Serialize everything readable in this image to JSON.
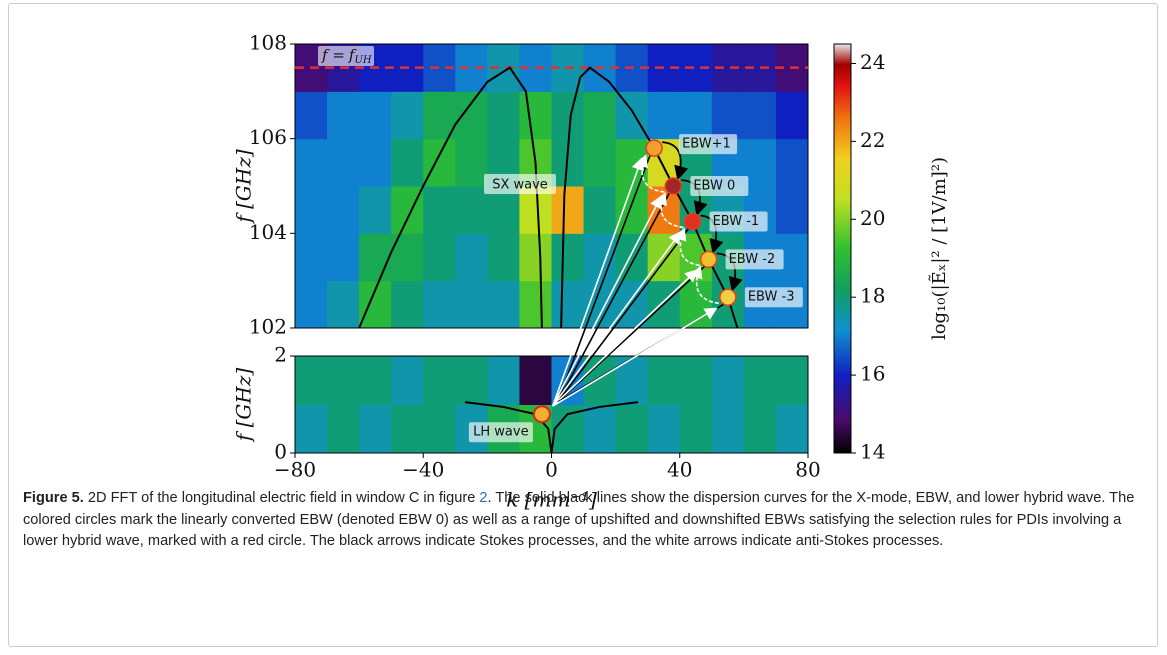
{
  "figure": {
    "xlim": [
      -80,
      80
    ],
    "xticks": [
      {
        "value": -80,
        "label": "−80"
      },
      {
        "value": -40,
        "label": "−40"
      },
      0,
      40,
      80
    ],
    "xlabel": "k [mm⁻¹]",
    "k_edges": [
      -80,
      -70,
      -60,
      -50,
      -40,
      -30,
      -20,
      -10,
      0,
      10,
      20,
      30,
      40,
      50,
      60,
      70,
      80
    ],
    "panels": [
      {
        "ylabel": "f [GHz]",
        "ylim": [
          102,
          108
        ],
        "yticks": [
          102,
          104,
          106,
          108
        ],
        "f_edges": [
          102,
          103,
          104,
          105,
          106,
          107,
          108
        ],
        "values": [
          [
            17,
            17.5,
            19,
            18,
            17.5,
            17.5,
            17.5,
            19.5,
            17.5,
            17.5,
            17.5,
            18,
            19,
            18,
            17,
            17
          ],
          [
            17,
            17,
            18.5,
            18.5,
            18,
            17.5,
            18,
            20,
            18,
            17.5,
            18,
            20,
            19.5,
            18,
            17,
            17
          ],
          [
            17,
            17,
            17.5,
            19,
            18,
            18,
            18,
            20.5,
            22,
            18,
            19,
            22.5,
            18,
            17.5,
            17,
            16.5
          ],
          [
            17,
            17,
            17,
            18,
            19,
            18.5,
            18,
            19.5,
            18,
            18.5,
            19,
            21,
            18,
            17,
            17,
            16.5
          ],
          [
            16.5,
            17,
            17,
            17.5,
            18.5,
            18.5,
            18,
            19,
            18,
            18.5,
            17.5,
            17,
            17,
            16.5,
            16.5,
            16
          ],
          [
            15,
            15.5,
            16,
            16,
            16.5,
            17,
            17.5,
            17,
            17.5,
            17,
            16.5,
            16,
            16,
            15.5,
            15.5,
            15
          ]
        ]
      },
      {
        "ylabel": "f [GHz]",
        "ylim": [
          0,
          2
        ],
        "yticks": [
          0,
          2
        ],
        "f_edges": [
          0,
          1,
          2
        ],
        "values": [
          [
            17.5,
            18,
            17.5,
            18,
            18,
            17.5,
            18.5,
            19,
            18,
            17.5,
            18,
            17.5,
            18,
            17.5,
            18,
            17.5
          ],
          [
            18,
            18,
            18,
            17.5,
            18,
            18,
            17.5,
            14.5,
            17,
            18,
            17.5,
            18,
            18,
            17.5,
            18,
            18
          ]
        ]
      }
    ],
    "colorbar": {
      "label": "log₁₀(|Ẽₓ|² / [1V/m]²)",
      "lim": [
        14,
        24.5
      ],
      "ticks": [
        14,
        16,
        18,
        20,
        22,
        24
      ]
    },
    "fuh": {
      "lhs": "f =",
      "rhs": "f",
      "sub": "UH",
      "value": 107.5
    },
    "curves": [
      {
        "panel": 0,
        "k": [
          -60,
          -50,
          -40,
          -30,
          -20,
          -13,
          -8,
          -5,
          -3.5,
          -3
        ],
        "f": [
          102,
          103.6,
          105,
          106.3,
          107.2,
          107.5,
          107,
          105.5,
          103.5,
          102
        ]
      },
      {
        "panel": 0,
        "k": [
          3,
          4,
          6,
          9,
          12,
          18,
          25,
          32,
          38,
          44,
          49,
          55,
          58
        ],
        "f": [
          102,
          104.8,
          106.5,
          107.3,
          107.5,
          107.2,
          106.6,
          105.8,
          105,
          104.25,
          103.45,
          102.65,
          102
        ]
      },
      {
        "panel": 1,
        "k": [
          -27,
          -15,
          -5,
          -1,
          0
        ],
        "f": [
          1.05,
          0.95,
          0.8,
          0.5,
          0
        ]
      },
      {
        "panel": 1,
        "k": [
          0,
          1,
          5,
          15,
          27
        ],
        "f": [
          0,
          0.5,
          0.8,
          0.95,
          1.05
        ]
      }
    ],
    "sx_label": "SX wave",
    "arrow_origin": {
      "k": 1,
      "f": 1.05
    },
    "modes": [
      {
        "label": "EBW+1",
        "k": 32,
        "f": 105.8,
        "color": "#f0a030"
      },
      {
        "label": "EBW 0",
        "k": 38,
        "f": 105.0,
        "color": "#a02828"
      },
      {
        "label": "EBW -1",
        "k": 44,
        "f": 104.25,
        "color": "#e03020"
      },
      {
        "label": "EBW -2",
        "k": 49,
        "f": 103.45,
        "color": "#f0c030"
      },
      {
        "label": "EBW -3",
        "k": 55,
        "f": 102.65,
        "color": "#f0d040"
      }
    ],
    "lh": {
      "label": "LH wave",
      "k": -3,
      "f": 0.8,
      "color": "#f0b030"
    },
    "caption": {
      "title": "Figure 5.",
      "text_1": "2D FFT of the longitudinal electric field in window C in figure ",
      "ref": "2",
      "text_2": ". The solid black lines show the dispersion curves for the X-mode, EBW, and lower hybrid wave. The colored circles mark the linearly converted EBW (denoted EBW 0) as well as a range of upshifted and downshifted EBWs satisfying the selection rules for PDIs involving a lower hybrid wave, marked with a red circle. The black arrows indicate Stokes processes, and the white arrows indicate anti-Stokes processes."
    }
  }
}
